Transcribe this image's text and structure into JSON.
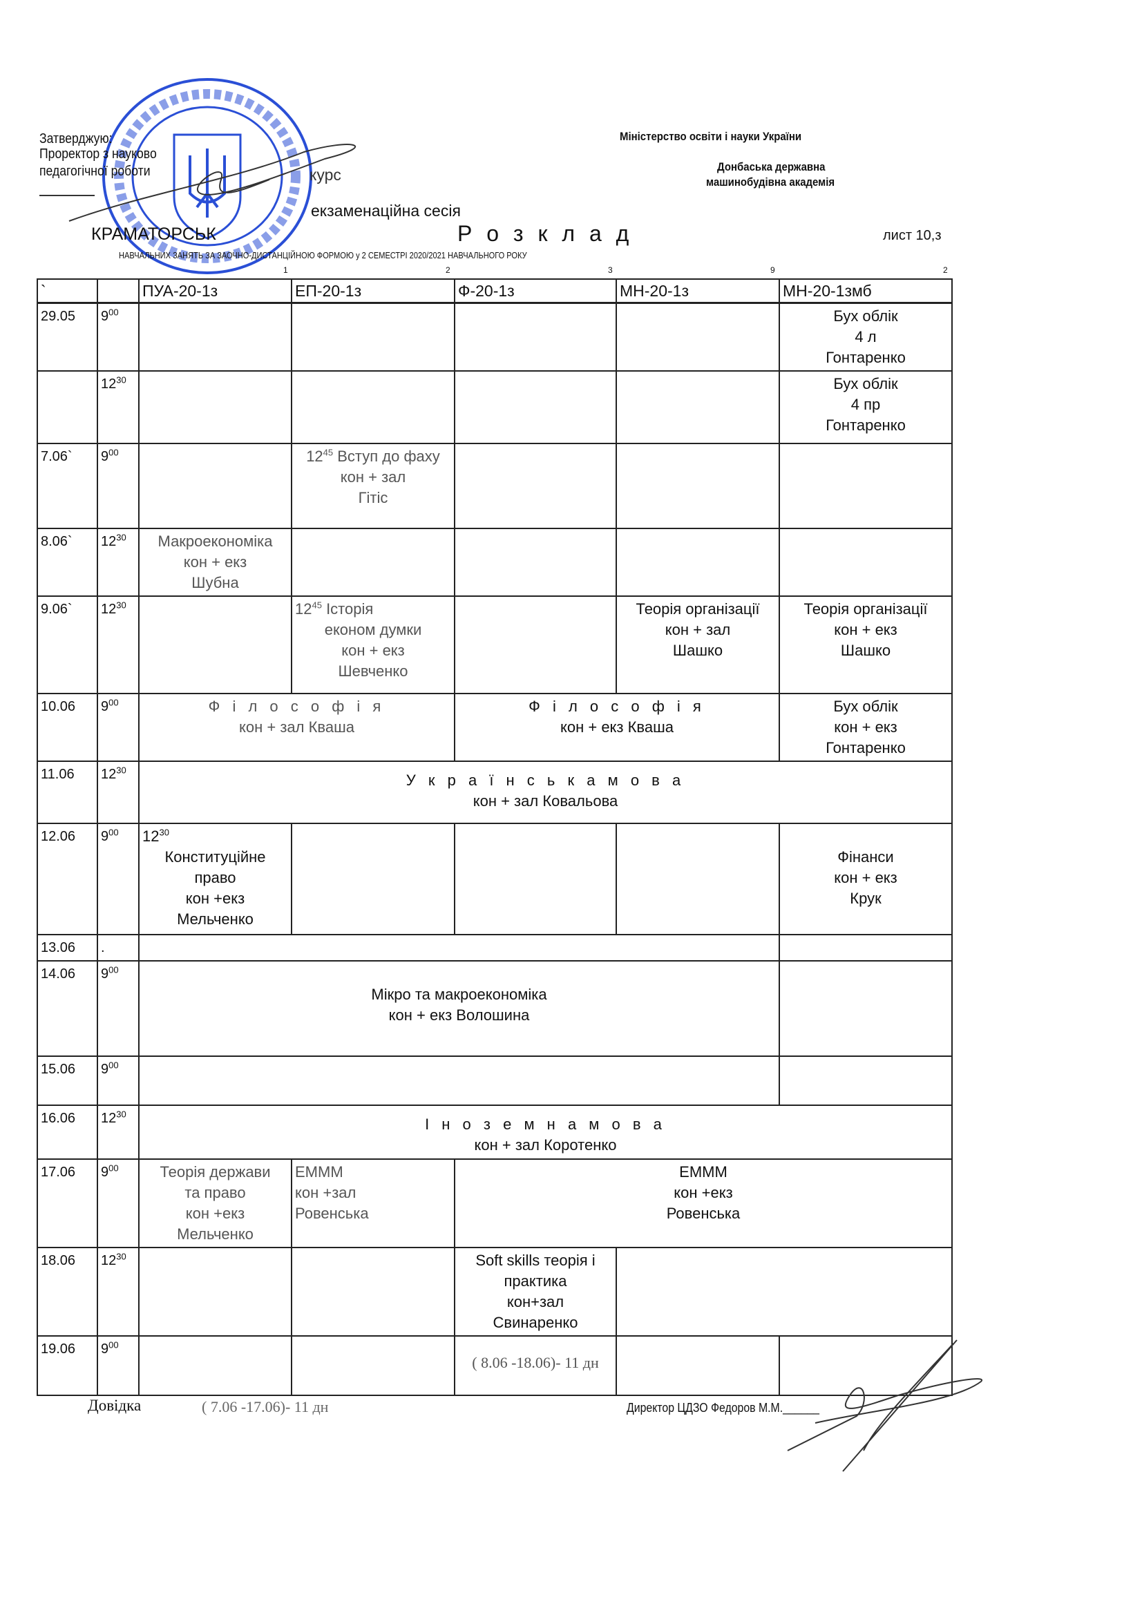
{
  "header": {
    "approve": "Затверджую:",
    "approver_line1": "Проректор з науково",
    "approver_line2": "педагогічної роботи",
    "course": "курс",
    "session": "екзаменаційна   сесія",
    "city": "КРАМАТОРСЬК",
    "title": "Р о з к л а д",
    "sheet": "лист  10,з",
    "subtitle": "НАВЧАЛЬНИХ ЗАНЯТЬ ЗА ЗАОЧНО-ДИСТАНЦІЙНОЮ ФОРМОЮ у 2 СЕМЕСТРІ  2020/2021 НАВЧАЛЬНОГО РОКУ",
    "ministry": "Міністерство освіти і науки України",
    "academy_line1": "Донбаська державна",
    "academy_line2": "машинобудівна академія",
    "column_numbers": [
      "1",
      "2",
      "3",
      "9",
      "2"
    ]
  },
  "stamp": {
    "text": "МІНІСТЕРСТВО ОСВІТИ І НАУКИ УКРАЇНИ * ДОНБАСЬКА ДЕРЖАВНА МАШИНОБУДІВНА АКАДЕМІЯ",
    "code": "02070759",
    "color": "#2a4fd6"
  },
  "table": {
    "columns": [
      "`",
      "",
      "ПУА-20-1з",
      "ЕП-20-1з",
      "Ф-20-1з",
      "МН-20-1з",
      "МН-20-1змб"
    ],
    "rows": [
      {
        "date": "29.05",
        "time": "9",
        "sup": "00",
        "cells": [
          {
            "span": 1,
            "lines": []
          },
          {
            "span": 1,
            "lines": []
          },
          {
            "span": 1,
            "lines": []
          },
          {
            "span": 1,
            "lines": []
          },
          {
            "span": 1,
            "lines": [
              "Бух облік",
              "4 л",
              "Гонтаренко"
            ]
          }
        ]
      },
      {
        "date": "",
        "time": "12",
        "sup": "30",
        "cells": [
          {
            "span": 1,
            "lines": []
          },
          {
            "span": 1,
            "lines": []
          },
          {
            "span": 1,
            "lines": []
          },
          {
            "span": 1,
            "lines": []
          },
          {
            "span": 1,
            "lines": [
              "Бух облік",
              "4 пр",
              "Гонтаренко"
            ]
          }
        ]
      },
      {
        "date": "7.06`",
        "time": "9",
        "sup": "00",
        "cells": [
          {
            "span": 1,
            "lines": []
          },
          {
            "span": 1,
            "pre": "12",
            "presup": "45",
            "lines": [
              "Вступ до фаху",
              "кон + зал",
              "Гітіс"
            ],
            "faded": true
          },
          {
            "span": 1,
            "lines": []
          },
          {
            "span": 1,
            "lines": []
          },
          {
            "span": 1,
            "lines": []
          }
        ]
      },
      {
        "date": "8.06`",
        "time": "12",
        "sup": "30",
        "cells": [
          {
            "span": 1,
            "lines": [
              "Макроекономіка",
              "кон + екз",
              "Шубна"
            ],
            "faded": true
          },
          {
            "span": 1,
            "lines": []
          },
          {
            "span": 1,
            "lines": []
          },
          {
            "span": 1,
            "lines": []
          },
          {
            "span": 1,
            "lines": []
          }
        ]
      },
      {
        "date": "9.06`",
        "time": "12",
        "sup": "30",
        "cells": [
          {
            "span": 1,
            "lines": []
          },
          {
            "span": 1,
            "pre": "12",
            "presup": "45",
            "lines": [
              "Історія",
              "економ думки",
              "кон + екз",
              "Шевченко"
            ],
            "faded": true
          },
          {
            "span": 1,
            "lines": []
          },
          {
            "span": 1,
            "lines": [
              "Теорія організації",
              "кон + зал",
              "Шашко"
            ]
          },
          {
            "span": 1,
            "lines": [
              "Теорія організації",
              "кон + екз",
              "Шашко"
            ]
          }
        ]
      },
      {
        "date": "10.06",
        "time": "9",
        "sup": "00",
        "cells": [
          {
            "span": 2,
            "lines": [
              "Ф і л о с о ф і я",
              "кон + зал                 Кваша"
            ],
            "faded": true
          },
          {
            "span": 2,
            "lines": [
              "Ф і л о с о ф і я",
              "кон + екз              Кваша"
            ]
          },
          {
            "span": 1,
            "lines": [
              "Бух облік",
              "кон + екз",
              "Гонтаренко"
            ]
          }
        ]
      },
      {
        "date": "11.06",
        "time": "12",
        "sup": "30",
        "cells": [
          {
            "span": 5,
            "lines": [
              "У к р а ї н с ь к а    м о в а",
              "кон + зал          Ковальова"
            ]
          }
        ]
      },
      {
        "date": "12.06",
        "time": "9",
        "sup": "00",
        "cells": [
          {
            "span": 1,
            "pre": "12",
            "presup": "30",
            "lines": [
              "Конституційне",
              "право",
              "кон +екз",
              "Мельченко"
            ]
          },
          {
            "span": 1,
            "lines": []
          },
          {
            "span": 1,
            "lines": []
          },
          {
            "span": 1,
            "lines": []
          },
          {
            "span": 1,
            "lines": [
              "",
              "Фінанси",
              "кон + екз",
              "Крук"
            ]
          }
        ]
      },
      {
        "date": "13.06",
        "time": ".",
        "sup": "",
        "cells": [
          {
            "span": 4,
            "lines": []
          },
          {
            "span": 1,
            "lines": []
          }
        ]
      },
      {
        "date": "14.06",
        "time": "9",
        "sup": "00",
        "cells": [
          {
            "span": 4,
            "lines": [
              "",
              "Мікро   та   макроекономіка",
              "кон + екз    Волошина"
            ]
          },
          {
            "span": 1,
            "lines": []
          }
        ]
      },
      {
        "date": "15.06",
        "time": "9",
        "sup": "00",
        "cells": [
          {
            "span": 4,
            "lines": []
          },
          {
            "span": 1,
            "lines": []
          }
        ]
      },
      {
        "date": "16.06",
        "time": "12",
        "sup": "30",
        "cells": [
          {
            "span": 5,
            "lines": [
              "І   н   о   з   е   м   н   а      м   о   в   а",
              "кон + зал      Коротенко"
            ]
          }
        ]
      },
      {
        "date": "17.06",
        "time": "9",
        "sup": "00",
        "cells": [
          {
            "span": 1,
            "lines": [
              "Теорія держави",
              "та право",
              "кон +екз",
              "Мельченко"
            ],
            "faded": true
          },
          {
            "span": 1,
            "lines": [
              "ЕМММ",
              "кон +зал",
              "Ровенська"
            ],
            "left": true,
            "faded": true
          },
          {
            "span": 3,
            "lines": [
              "ЕМММ",
              "кон +екз",
              "Ровенська"
            ]
          }
        ]
      },
      {
        "date": "18.06",
        "time": "12",
        "sup": "30",
        "cells": [
          {
            "span": 1,
            "lines": []
          },
          {
            "span": 1,
            "lines": []
          },
          {
            "span": 1,
            "lines": [
              "Soft skills теорія і",
              "практика",
              "кон+зал",
              "Свинаренко"
            ]
          },
          {
            "span": 2,
            "lines": []
          }
        ]
      },
      {
        "date": "19.06",
        "time": "9",
        "sup": "00",
        "cells": [
          {
            "span": 1,
            "lines": []
          },
          {
            "span": 1,
            "lines": []
          },
          {
            "span": 1,
            "lines": [
              "( 8.06 -18.06)- 11 дн"
            ],
            "serif": true,
            "faded": true
          },
          {
            "span": 1,
            "lines": []
          },
          {
            "span": 1,
            "lines": []
          }
        ]
      }
    ]
  },
  "footer": {
    "note_label": "Довідка",
    "note_value": "( 7.06 -17.06)- 11 дн",
    "director": "Директор   ЦДЗО   Федоров М.М.______"
  }
}
